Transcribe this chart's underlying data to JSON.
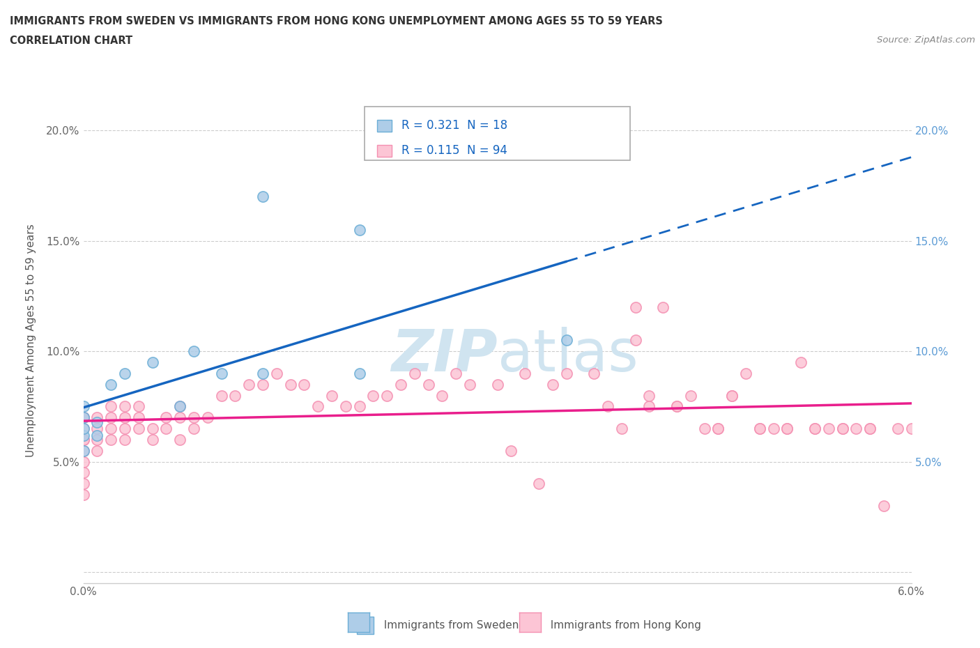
{
  "title_line1": "IMMIGRANTS FROM SWEDEN VS IMMIGRANTS FROM HONG KONG UNEMPLOYMENT AMONG AGES 55 TO 59 YEARS",
  "title_line2": "CORRELATION CHART",
  "source_text": "Source: ZipAtlas.com",
  "ylabel": "Unemployment Among Ages 55 to 59 years",
  "xlim": [
    0.0,
    0.06
  ],
  "ylim": [
    -0.005,
    0.215
  ],
  "x_ticks": [
    0.0,
    0.01,
    0.02,
    0.03,
    0.04,
    0.05,
    0.06
  ],
  "x_tick_labels": [
    "0.0%",
    "",
    "",
    "",
    "",
    "",
    "6.0%"
  ],
  "y_ticks": [
    0.0,
    0.05,
    0.1,
    0.15,
    0.2
  ],
  "y_tick_labels_left": [
    "",
    "5.0%",
    "10.0%",
    "15.0%",
    "20.0%"
  ],
  "y_tick_labels_right": [
    "",
    "5.0%",
    "10.0%",
    "15.0%",
    "20.0%"
  ],
  "legend_sweden_R": "0.321",
  "legend_sweden_N": "18",
  "legend_hongkong_R": "0.115",
  "legend_hongkong_N": "94",
  "sweden_scatter_color": "#aecde8",
  "sweden_scatter_edge": "#6baed6",
  "hongkong_scatter_color": "#fcc5d5",
  "hongkong_scatter_edge": "#f48fb1",
  "sweden_line_color": "#1565C0",
  "hongkong_line_color": "#e91e8c",
  "legend_sweden_box_color": "#aecde8",
  "legend_hongkong_box_color": "#fcc5d5",
  "legend_text_color": "#1565C0",
  "watermark_color": "#d0e4f0",
  "sweden_points_x": [
    0.0,
    0.0,
    0.0,
    0.0,
    0.0,
    0.001,
    0.001,
    0.002,
    0.003,
    0.005,
    0.007,
    0.008,
    0.01,
    0.013,
    0.02,
    0.035,
    0.013,
    0.02
  ],
  "sweden_points_y": [
    0.055,
    0.062,
    0.065,
    0.07,
    0.075,
    0.062,
    0.068,
    0.085,
    0.09,
    0.095,
    0.075,
    0.1,
    0.09,
    0.17,
    0.155,
    0.105,
    0.09,
    0.09
  ],
  "hongkong_points_x": [
    0.0,
    0.0,
    0.0,
    0.0,
    0.0,
    0.0,
    0.0,
    0.0,
    0.0,
    0.0,
    0.001,
    0.001,
    0.001,
    0.001,
    0.002,
    0.002,
    0.002,
    0.002,
    0.003,
    0.003,
    0.003,
    0.003,
    0.004,
    0.004,
    0.004,
    0.005,
    0.005,
    0.006,
    0.006,
    0.007,
    0.007,
    0.007,
    0.008,
    0.008,
    0.009,
    0.01,
    0.011,
    0.012,
    0.013,
    0.014,
    0.015,
    0.016,
    0.017,
    0.018,
    0.019,
    0.02,
    0.021,
    0.022,
    0.023,
    0.024,
    0.025,
    0.026,
    0.027,
    0.028,
    0.03,
    0.031,
    0.032,
    0.033,
    0.034,
    0.035,
    0.037,
    0.038,
    0.039,
    0.04,
    0.041,
    0.042,
    0.043,
    0.044,
    0.045,
    0.046,
    0.047,
    0.048,
    0.049,
    0.05,
    0.051,
    0.052,
    0.053,
    0.054,
    0.055,
    0.056,
    0.057,
    0.058,
    0.059,
    0.06,
    0.04,
    0.041,
    0.043,
    0.046,
    0.047,
    0.049,
    0.051,
    0.053,
    0.055,
    0.057
  ],
  "hongkong_points_y": [
    0.055,
    0.06,
    0.065,
    0.07,
    0.045,
    0.04,
    0.035,
    0.05,
    0.06,
    0.07,
    0.055,
    0.06,
    0.065,
    0.07,
    0.06,
    0.065,
    0.07,
    0.075,
    0.06,
    0.065,
    0.07,
    0.075,
    0.065,
    0.07,
    0.075,
    0.06,
    0.065,
    0.065,
    0.07,
    0.07,
    0.075,
    0.06,
    0.065,
    0.07,
    0.07,
    0.08,
    0.08,
    0.085,
    0.085,
    0.09,
    0.085,
    0.085,
    0.075,
    0.08,
    0.075,
    0.075,
    0.08,
    0.08,
    0.085,
    0.09,
    0.085,
    0.08,
    0.09,
    0.085,
    0.085,
    0.055,
    0.09,
    0.04,
    0.085,
    0.09,
    0.09,
    0.075,
    0.065,
    0.105,
    0.075,
    0.12,
    0.075,
    0.08,
    0.065,
    0.065,
    0.08,
    0.09,
    0.065,
    0.065,
    0.065,
    0.095,
    0.065,
    0.065,
    0.065,
    0.065,
    0.065,
    0.03,
    0.065,
    0.065,
    0.12,
    0.08,
    0.075,
    0.065,
    0.08,
    0.065,
    0.065,
    0.065,
    0.065,
    0.065
  ]
}
